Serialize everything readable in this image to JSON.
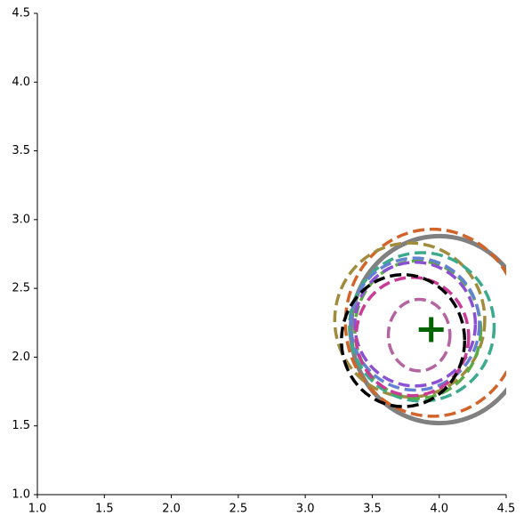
{
  "chart_data": {
    "type": "ellipses",
    "xlim": [
      1.0,
      4.5
    ],
    "ylim": [
      1.0,
      4.5
    ],
    "xticks": [
      {
        "value": 1.0,
        "label": "1.0"
      },
      {
        "value": 1.5,
        "label": "1.5"
      },
      {
        "value": 2.0,
        "label": "2.0"
      },
      {
        "value": 2.5,
        "label": "2.5"
      },
      {
        "value": 3.0,
        "label": "3.0"
      },
      {
        "value": 3.5,
        "label": "3.5"
      },
      {
        "value": 4.0,
        "label": "4.0"
      },
      {
        "value": 4.5,
        "label": "4.5"
      }
    ],
    "yticks": [
      {
        "value": 1.0,
        "label": "1.0"
      },
      {
        "value": 1.5,
        "label": "1.5"
      },
      {
        "value": 2.0,
        "label": "2.0"
      },
      {
        "value": 2.5,
        "label": "2.5"
      },
      {
        "value": 3.0,
        "label": "3.0"
      },
      {
        "value": 3.5,
        "label": "3.5"
      },
      {
        "value": 4.0,
        "label": "4.0"
      },
      {
        "value": 4.5,
        "label": "4.5"
      }
    ],
    "ellipses": [
      {
        "cx": 4.0,
        "cy": 2.2,
        "rx": 0.66,
        "ry": 0.68,
        "color": "#808080",
        "dashed": false
      },
      {
        "cx": 3.95,
        "cy": 2.25,
        "rx": 0.65,
        "ry": 0.68,
        "color": "#d2642a",
        "dashed": true
      },
      {
        "cx": 3.78,
        "cy": 2.27,
        "rx": 0.56,
        "ry": 0.56,
        "color": "#a08c3c",
        "dashed": true
      },
      {
        "cx": 3.87,
        "cy": 2.22,
        "rx": 0.54,
        "ry": 0.54,
        "color": "#3caa8c",
        "dashed": true
      },
      {
        "cx": 3.84,
        "cy": 2.2,
        "rx": 0.47,
        "ry": 0.5,
        "color": "#5aaa46",
        "dashed": true
      },
      {
        "cx": 3.82,
        "cy": 2.24,
        "rx": 0.48,
        "ry": 0.48,
        "color": "#6482d2",
        "dashed": true
      },
      {
        "cx": 3.82,
        "cy": 2.24,
        "rx": 0.45,
        "ry": 0.45,
        "color": "#8c50d2",
        "dashed": true
      },
      {
        "cx": 3.8,
        "cy": 2.15,
        "rx": 0.42,
        "ry": 0.43,
        "color": "#c83c96",
        "dashed": true
      },
      {
        "cx": 3.73,
        "cy": 2.12,
        "rx": 0.46,
        "ry": 0.48,
        "color": "#000000",
        "dashed": true
      },
      {
        "cx": 3.85,
        "cy": 2.16,
        "rx": 0.23,
        "ry": 0.26,
        "color": "#b464a0",
        "dashed": true
      }
    ],
    "marker": {
      "x": 3.94,
      "y": 2.2,
      "color": "#006400"
    }
  }
}
